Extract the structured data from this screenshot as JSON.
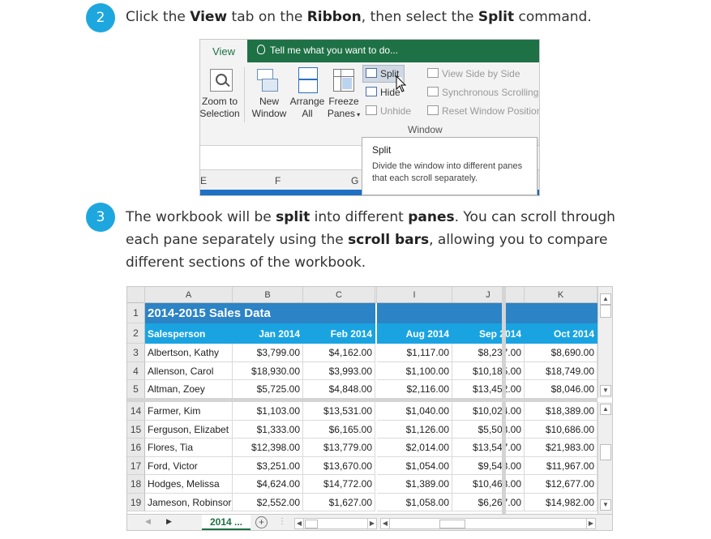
{
  "steps": [
    {
      "number": "2",
      "parts": [
        "Click the ",
        "View",
        " tab on the ",
        "Ribbon",
        ", then select the ",
        "Split",
        " command."
      ]
    },
    {
      "number": "3",
      "line1": [
        "The workbook will be ",
        "split",
        " into different ",
        "panes",
        ". You can scroll through"
      ],
      "line2": [
        "each pane separately using the ",
        "scroll bars",
        ", allowing you to compare"
      ],
      "line3": "different sections of the workbook."
    }
  ],
  "ribbon": {
    "tab": "View",
    "tell_me": "Tell me what you want to do...",
    "buttons": {
      "zoom_line1": "Zoom to",
      "zoom_line2": "Selection",
      "new_line1": "New",
      "new_line2": "Window",
      "arrange_line1": "Arrange",
      "arrange_line2": "All",
      "freeze_line1": "Freeze",
      "freeze_line2": "Panes",
      "split": "Split",
      "hide": "Hide",
      "unhide": "Unhide",
      "view_side": "View Side by Side",
      "sync_scroll": "Synchronous Scrolling",
      "reset_pos": "Reset Window Position"
    },
    "group_label": "Window",
    "col_e": "E",
    "col_f": "F",
    "col_g": "G",
    "tooltip": {
      "title": "Split",
      "body": "Divide the window into different panes that each scroll separately."
    }
  },
  "sheet": {
    "columns_left": [
      "A",
      "B",
      "C"
    ],
    "columns_right": [
      "I",
      "J",
      "K"
    ],
    "title": "2014-2015 Sales Data",
    "headers": [
      "Salesperson",
      "Jan 2014",
      "Feb 2014",
      "Aug 2014",
      "Sep 2014",
      "Oct 2014"
    ],
    "rows_top": [
      {
        "num": "3",
        "cells": [
          "Albertson, Kathy",
          "$3,799.00",
          "$4,162.00",
          "$1,117.00",
          "$8,237.00",
          "$8,690.00"
        ]
      },
      {
        "num": "4",
        "cells": [
          "Allenson, Carol",
          "$18,930.00",
          "$3,993.00",
          "$1,100.00",
          "$10,185.00",
          "$18,749.00"
        ]
      },
      {
        "num": "5",
        "cells": [
          "Altman, Zoey",
          "$5,725.00",
          "$4,848.00",
          "$2,116.00",
          "$13,452.00",
          "$8,046.00"
        ]
      }
    ],
    "rows_bottom": [
      {
        "num": "14",
        "cells": [
          "Farmer, Kim",
          "$1,103.00",
          "$13,531.00",
          "$1,040.00",
          "$10,024.00",
          "$18,389.00"
        ]
      },
      {
        "num": "15",
        "cells": [
          "Ferguson, Elizabet",
          "$1,333.00",
          "$6,165.00",
          "$1,126.00",
          "$5,503.00",
          "$10,686.00"
        ]
      },
      {
        "num": "16",
        "cells": [
          "Flores, Tia",
          "$12,398.00",
          "$13,779.00",
          "$2,014.00",
          "$13,547.00",
          "$21,983.00"
        ]
      },
      {
        "num": "17",
        "cells": [
          "Ford, Victor",
          "$3,251.00",
          "$13,670.00",
          "$1,054.00",
          "$9,543.00",
          "$11,967.00"
        ]
      },
      {
        "num": "18",
        "cells": [
          "Hodges, Melissa",
          "$4,624.00",
          "$14,772.00",
          "$1,389.00",
          "$10,468.00",
          "$12,677.00"
        ]
      },
      {
        "num": "19",
        "cells": [
          "Jameson, Robinsor",
          "$2,552.00",
          "$1,627.00",
          "$1,058.00",
          "$6,267.00",
          "$14,982.00"
        ]
      }
    ],
    "row1": "1",
    "row2": "2",
    "sheet_tab": "2014 ...",
    "add_sheet": "+"
  },
  "colors": {
    "accent": "#1ea7de",
    "excel_green": "#1e7145",
    "title_blue": "#2c83c5",
    "header_blue": "#1aa3e1"
  }
}
